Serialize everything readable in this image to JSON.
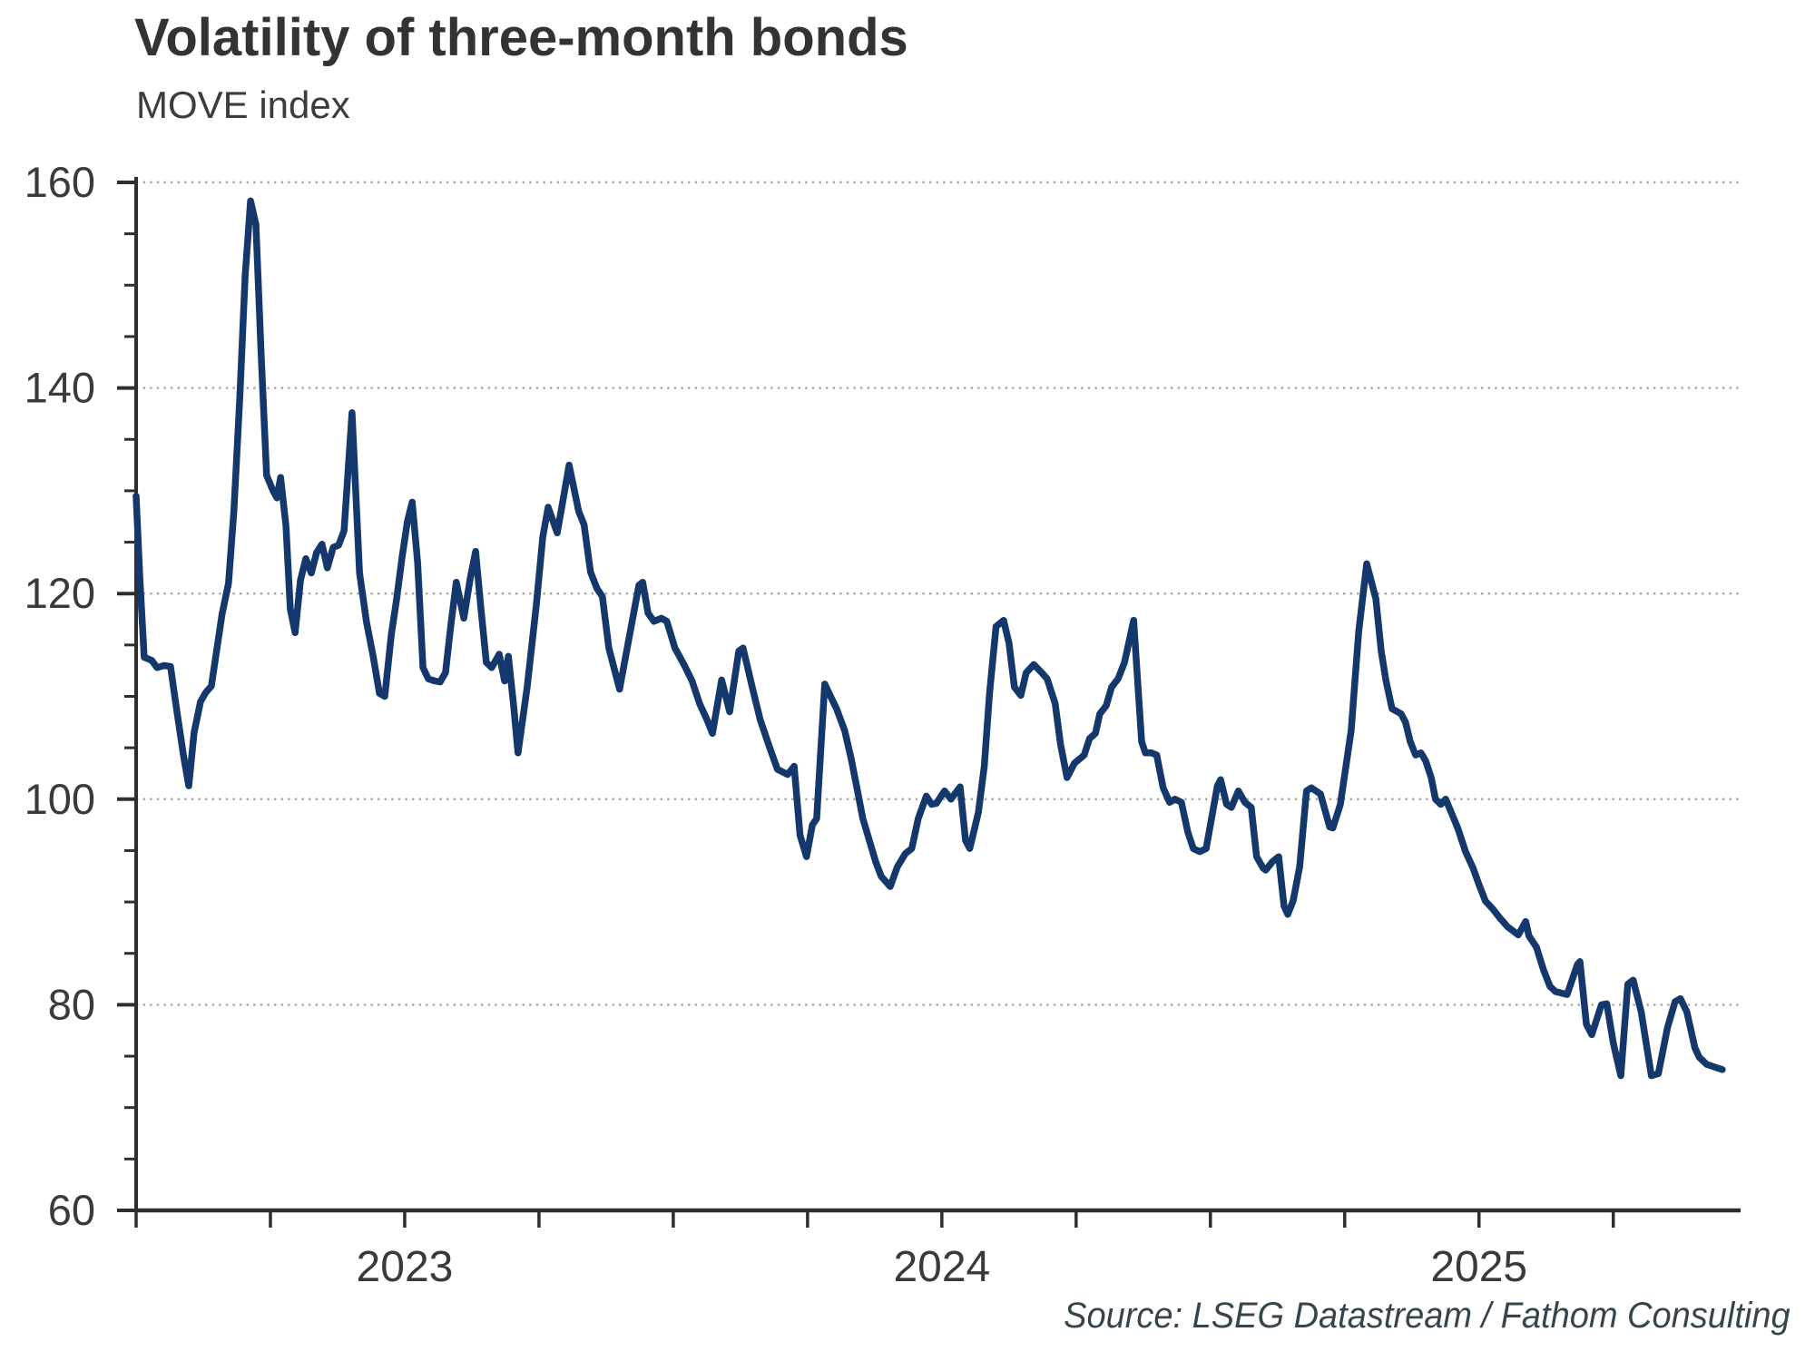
{
  "header": {
    "title": "Volatility of three-month bonds",
    "subtitle": "MOVE index"
  },
  "footer": {
    "source": "Source: LSEG Datastream / Fathom Consulting"
  },
  "colors": {
    "line": "#14386B",
    "axis": "#2e2e2e",
    "grid": "#a6a6a6",
    "tick_label": "#3a3a3a",
    "title": "#333333",
    "source_text": "#36454d"
  },
  "chart_data": {
    "type": "line",
    "title": "Volatility of three-month bonds",
    "subtitle": "MOVE index",
    "ylabel": "MOVE index",
    "xlabel": "",
    "legend": "none",
    "grid": "horizontal-dotted",
    "ylim": [
      60,
      160
    ],
    "y_ticks": [
      60,
      80,
      100,
      120,
      140,
      160
    ],
    "y_minor_step": 5,
    "x_range": [
      2023.0,
      2025.987
    ],
    "x_tick_step_years": 0.25,
    "x_year_labels": [
      {
        "label": "2023",
        "pos": 2023.5
      },
      {
        "label": "2024",
        "pos": 2024.5
      },
      {
        "label": "2025",
        "pos": 2025.5
      }
    ],
    "series": [
      {
        "name": "MOVE index",
        "points": [
          [
            2023.0,
            129.5
          ],
          [
            2023.007,
            121.5
          ],
          [
            2023.015,
            113.8
          ],
          [
            2023.029,
            113.5
          ],
          [
            2023.039,
            112.8
          ],
          [
            2023.052,
            113.0
          ],
          [
            2023.064,
            112.9
          ],
          [
            2023.076,
            108.5
          ],
          [
            2023.088,
            104.3
          ],
          [
            2023.098,
            101.3
          ],
          [
            2023.108,
            106.5
          ],
          [
            2023.12,
            109.5
          ],
          [
            2023.13,
            110.4
          ],
          [
            2023.14,
            111.0
          ],
          [
            2023.15,
            114.5
          ],
          [
            2023.16,
            118.0
          ],
          [
            2023.172,
            121.0
          ],
          [
            2023.182,
            128.0
          ],
          [
            2023.193,
            139.0
          ],
          [
            2023.203,
            151.0
          ],
          [
            2023.213,
            158.2
          ],
          [
            2023.223,
            155.9
          ],
          [
            2023.233,
            143.0
          ],
          [
            2023.243,
            131.5
          ],
          [
            2023.255,
            130.0
          ],
          [
            2023.262,
            129.3
          ],
          [
            2023.269,
            131.3
          ],
          [
            2023.279,
            126.6
          ],
          [
            2023.287,
            118.5
          ],
          [
            2023.296,
            116.2
          ],
          [
            2023.306,
            121.3
          ],
          [
            2023.316,
            123.4
          ],
          [
            2023.326,
            122.0
          ],
          [
            2023.336,
            124.0
          ],
          [
            2023.346,
            124.8
          ],
          [
            2023.356,
            122.5
          ],
          [
            2023.367,
            124.5
          ],
          [
            2023.377,
            124.7
          ],
          [
            2023.387,
            126.1
          ],
          [
            2023.402,
            137.6
          ],
          [
            2023.416,
            122.0
          ],
          [
            2023.429,
            117.2
          ],
          [
            2023.441,
            114.0
          ],
          [
            2023.453,
            110.3
          ],
          [
            2023.463,
            110.0
          ],
          [
            2023.475,
            116.0
          ],
          [
            2023.485,
            119.5
          ],
          [
            2023.495,
            123.5
          ],
          [
            2023.505,
            127.0
          ],
          [
            2023.514,
            128.9
          ],
          [
            2023.524,
            123.0
          ],
          [
            2023.534,
            112.8
          ],
          [
            2023.544,
            111.7
          ],
          [
            2023.556,
            111.5
          ],
          [
            2023.566,
            111.4
          ],
          [
            2023.576,
            112.3
          ],
          [
            2023.586,
            117.0
          ],
          [
            2023.596,
            121.1
          ],
          [
            2023.61,
            117.6
          ],
          [
            2023.622,
            121.5
          ],
          [
            2023.632,
            124.1
          ],
          [
            2023.642,
            118.5
          ],
          [
            2023.652,
            113.3
          ],
          [
            2023.662,
            112.8
          ],
          [
            2023.676,
            114.1
          ],
          [
            2023.686,
            111.5
          ],
          [
            2023.693,
            113.9
          ],
          [
            2023.703,
            109.0
          ],
          [
            2023.711,
            104.5
          ],
          [
            2023.728,
            110.9
          ],
          [
            2023.745,
            118.9
          ],
          [
            2023.757,
            125.5
          ],
          [
            2023.767,
            128.4
          ],
          [
            2023.784,
            125.9
          ],
          [
            2023.796,
            129.5
          ],
          [
            2023.806,
            132.5
          ],
          [
            2023.824,
            128.0
          ],
          [
            2023.834,
            126.7
          ],
          [
            2023.846,
            122.1
          ],
          [
            2023.858,
            120.5
          ],
          [
            2023.868,
            119.7
          ],
          [
            2023.88,
            114.7
          ],
          [
            2023.9,
            110.7
          ],
          [
            2023.917,
            115.5
          ],
          [
            2023.936,
            120.8
          ],
          [
            2023.943,
            121.1
          ],
          [
            2023.953,
            118.1
          ],
          [
            2023.964,
            117.3
          ],
          [
            2023.978,
            117.6
          ],
          [
            2023.988,
            117.3
          ],
          [
            2024.003,
            114.7
          ],
          [
            2024.02,
            113.1
          ],
          [
            2024.035,
            111.5
          ],
          [
            2024.049,
            109.3
          ],
          [
            2024.063,
            107.7
          ],
          [
            2024.073,
            106.4
          ],
          [
            2024.09,
            111.6
          ],
          [
            2024.105,
            108.5
          ],
          [
            2024.122,
            114.4
          ],
          [
            2024.13,
            114.7
          ],
          [
            2024.147,
            110.9
          ],
          [
            2024.162,
            107.7
          ],
          [
            2024.179,
            105.1
          ],
          [
            2024.194,
            102.9
          ],
          [
            2024.213,
            102.4
          ],
          [
            2024.225,
            103.2
          ],
          [
            2024.236,
            96.5
          ],
          [
            2024.248,
            94.4
          ],
          [
            2024.259,
            97.5
          ],
          [
            2024.267,
            98.1
          ],
          [
            2024.282,
            111.2
          ],
          [
            2024.292,
            110.1
          ],
          [
            2024.304,
            108.8
          ],
          [
            2024.319,
            106.7
          ],
          [
            2024.331,
            104.0
          ],
          [
            2024.343,
            100.8
          ],
          [
            2024.353,
            98.1
          ],
          [
            2024.365,
            96.0
          ],
          [
            2024.377,
            93.9
          ],
          [
            2024.387,
            92.5
          ],
          [
            2024.404,
            91.5
          ],
          [
            2024.417,
            93.4
          ],
          [
            2024.432,
            94.7
          ],
          [
            2024.444,
            95.2
          ],
          [
            2024.456,
            98.1
          ],
          [
            2024.471,
            100.3
          ],
          [
            2024.481,
            99.5
          ],
          [
            2024.49,
            99.6
          ],
          [
            2024.505,
            100.8
          ],
          [
            2024.517,
            100.0
          ],
          [
            2024.534,
            101.2
          ],
          [
            2024.544,
            96.0
          ],
          [
            2024.552,
            95.2
          ],
          [
            2024.568,
            98.7
          ],
          [
            2024.579,
            103.2
          ],
          [
            2024.589,
            110.4
          ],
          [
            2024.601,
            116.8
          ],
          [
            2024.615,
            117.4
          ],
          [
            2024.625,
            115.2
          ],
          [
            2024.635,
            110.9
          ],
          [
            2024.647,
            110.1
          ],
          [
            2024.657,
            112.3
          ],
          [
            2024.671,
            113.1
          ],
          [
            2024.686,
            112.3
          ],
          [
            2024.696,
            111.7
          ],
          [
            2024.711,
            109.3
          ],
          [
            2024.721,
            105.3
          ],
          [
            2024.733,
            102.1
          ],
          [
            2024.747,
            103.5
          ],
          [
            2024.765,
            104.3
          ],
          [
            2024.775,
            105.9
          ],
          [
            2024.786,
            106.4
          ],
          [
            2024.794,
            108.3
          ],
          [
            2024.806,
            109.1
          ],
          [
            2024.816,
            110.9
          ],
          [
            2024.828,
            111.7
          ],
          [
            2024.84,
            113.3
          ],
          [
            2024.857,
            117.4
          ],
          [
            2024.872,
            105.6
          ],
          [
            2024.879,
            104.5
          ],
          [
            2024.89,
            104.5
          ],
          [
            2024.9,
            104.3
          ],
          [
            2024.912,
            101.1
          ],
          [
            2024.924,
            99.7
          ],
          [
            2024.934,
            100.0
          ],
          [
            2024.946,
            99.7
          ],
          [
            2024.958,
            96.8
          ],
          [
            2024.968,
            95.2
          ],
          [
            2024.98,
            94.9
          ],
          [
            2024.992,
            95.2
          ],
          [
            2025.002,
            98.1
          ],
          [
            2025.013,
            101.3
          ],
          [
            2025.019,
            101.9
          ],
          [
            2025.03,
            99.5
          ],
          [
            2025.039,
            99.2
          ],
          [
            2025.052,
            100.8
          ],
          [
            2025.064,
            99.7
          ],
          [
            2025.076,
            99.2
          ],
          [
            2025.086,
            94.4
          ],
          [
            2025.098,
            93.3
          ],
          [
            2025.103,
            93.1
          ],
          [
            2025.115,
            93.9
          ],
          [
            2025.127,
            94.4
          ],
          [
            2025.137,
            89.6
          ],
          [
            2025.144,
            88.8
          ],
          [
            2025.154,
            90.1
          ],
          [
            2025.166,
            93.4
          ],
          [
            2025.179,
            100.8
          ],
          [
            2025.188,
            101.1
          ],
          [
            2025.205,
            100.5
          ],
          [
            2025.222,
            97.3
          ],
          [
            2025.228,
            97.2
          ],
          [
            2025.242,
            99.5
          ],
          [
            2025.262,
            106.7
          ],
          [
            2025.276,
            116.3
          ],
          [
            2025.291,
            122.9
          ],
          [
            2025.308,
            119.5
          ],
          [
            2025.318,
            114.4
          ],
          [
            2025.327,
            111.5
          ],
          [
            2025.338,
            108.8
          ],
          [
            2025.355,
            108.3
          ],
          [
            2025.363,
            107.5
          ],
          [
            2025.372,
            105.6
          ],
          [
            2025.382,
            104.3
          ],
          [
            2025.392,
            104.5
          ],
          [
            2025.401,
            103.7
          ],
          [
            2025.411,
            102.1
          ],
          [
            2025.419,
            100.0
          ],
          [
            2025.429,
            99.5
          ],
          [
            2025.438,
            100.0
          ],
          [
            2025.45,
            98.5
          ],
          [
            2025.461,
            97.1
          ],
          [
            2025.475,
            94.9
          ],
          [
            2025.489,
            93.3
          ],
          [
            2025.5,
            91.7
          ],
          [
            2025.512,
            90.1
          ],
          [
            2025.526,
            89.3
          ],
          [
            2025.538,
            88.5
          ],
          [
            2025.553,
            87.6
          ],
          [
            2025.573,
            86.8
          ],
          [
            2025.587,
            88.1
          ],
          [
            2025.593,
            86.7
          ],
          [
            2025.607,
            85.6
          ],
          [
            2025.62,
            83.4
          ],
          [
            2025.632,
            81.8
          ],
          [
            2025.642,
            81.3
          ],
          [
            2025.664,
            81.0
          ],
          [
            2025.683,
            83.9
          ],
          [
            2025.688,
            84.2
          ],
          [
            2025.7,
            78.1
          ],
          [
            2025.71,
            77.1
          ],
          [
            2025.728,
            80.0
          ],
          [
            2025.738,
            80.1
          ],
          [
            2025.75,
            76.3
          ],
          [
            2025.764,
            73.1
          ],
          [
            2025.777,
            82.0
          ],
          [
            2025.787,
            82.4
          ],
          [
            2025.802,
            79.3
          ],
          [
            2025.821,
            73.1
          ],
          [
            2025.834,
            73.3
          ],
          [
            2025.851,
            77.8
          ],
          [
            2025.865,
            80.3
          ],
          [
            2025.875,
            80.6
          ],
          [
            2025.887,
            79.3
          ],
          [
            2025.902,
            75.8
          ],
          [
            2025.91,
            74.9
          ],
          [
            2025.924,
            74.2
          ],
          [
            2025.941,
            73.9
          ],
          [
            2025.953,
            73.7
          ]
        ]
      }
    ]
  }
}
